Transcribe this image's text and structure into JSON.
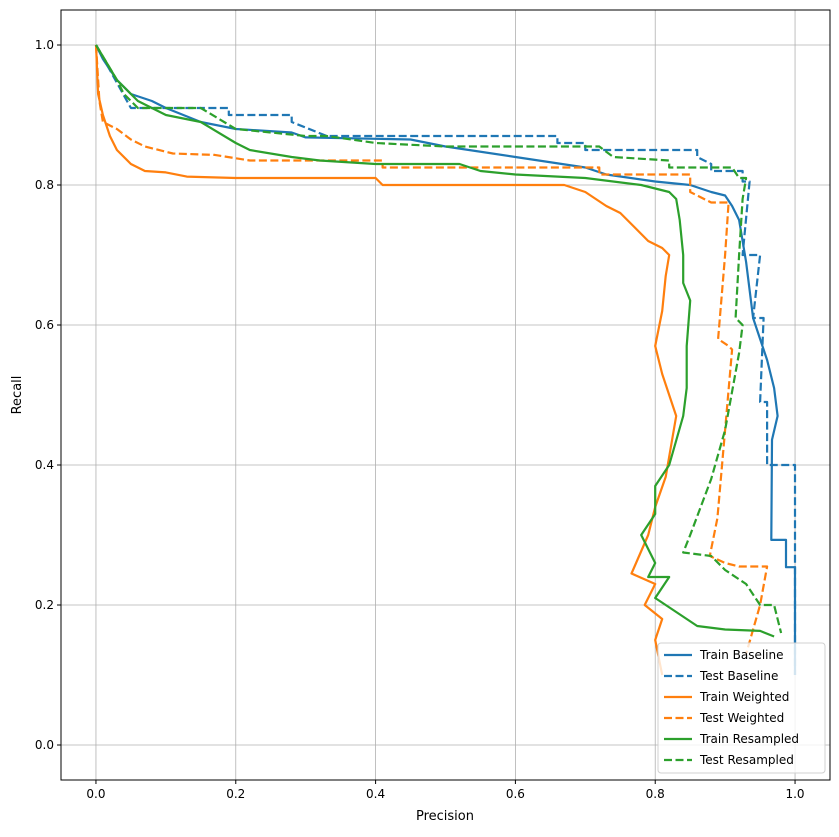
{
  "chart_data": {
    "type": "line",
    "title": "",
    "xlabel": "Precision",
    "ylabel": "Recall",
    "xlim": [
      -0.05,
      1.05
    ],
    "ylim": [
      -0.05,
      1.05
    ],
    "xticks": [
      "0.0",
      "0.2",
      "0.4",
      "0.6",
      "0.8",
      "1.0"
    ],
    "yticks": [
      "0.0",
      "0.2",
      "0.4",
      "0.6",
      "0.8",
      "1.0"
    ],
    "grid": true,
    "legend_position": "lower-right",
    "series": [
      {
        "name": "Train Baseline",
        "color": "#1f77b4",
        "dash": false,
        "points": [
          [
            0,
            1
          ],
          [
            0.01,
            0.98
          ],
          [
            0.03,
            0.95
          ],
          [
            0.05,
            0.93
          ],
          [
            0.08,
            0.92
          ],
          [
            0.1,
            0.91
          ],
          [
            0.15,
            0.89
          ],
          [
            0.2,
            0.88
          ],
          [
            0.28,
            0.875
          ],
          [
            0.3,
            0.868
          ],
          [
            0.45,
            0.865
          ],
          [
            0.5,
            0.855
          ],
          [
            0.6,
            0.84
          ],
          [
            0.7,
            0.825
          ],
          [
            0.73,
            0.815
          ],
          [
            0.8,
            0.805
          ],
          [
            0.85,
            0.8
          ],
          [
            0.88,
            0.79
          ],
          [
            0.9,
            0.785
          ],
          [
            0.91,
            0.77
          ],
          [
            0.92,
            0.75
          ],
          [
            0.925,
            0.72
          ],
          [
            0.93,
            0.69
          ],
          [
            0.935,
            0.65
          ],
          [
            0.94,
            0.61
          ],
          [
            0.95,
            0.58
          ],
          [
            0.96,
            0.55
          ],
          [
            0.97,
            0.51
          ],
          [
            0.975,
            0.47
          ],
          [
            0.967,
            0.436
          ],
          [
            0.966,
            0.293
          ],
          [
            0.987,
            0.293
          ],
          [
            0.987,
            0.254
          ],
          [
            1.0,
            0.254
          ],
          [
            1.0,
            0.1
          ]
        ]
      },
      {
        "name": "Test Baseline",
        "color": "#1f77b4",
        "dash": true,
        "points": [
          [
            0,
            1
          ],
          [
            0.05,
            0.91
          ],
          [
            0.19,
            0.91
          ],
          [
            0.19,
            0.9
          ],
          [
            0.28,
            0.9
          ],
          [
            0.28,
            0.89
          ],
          [
            0.33,
            0.87
          ],
          [
            0.66,
            0.87
          ],
          [
            0.66,
            0.86
          ],
          [
            0.7,
            0.86
          ],
          [
            0.7,
            0.85
          ],
          [
            0.86,
            0.85
          ],
          [
            0.86,
            0.84
          ],
          [
            0.88,
            0.83
          ],
          [
            0.88,
            0.82
          ],
          [
            0.925,
            0.82
          ],
          [
            0.925,
            0.805
          ],
          [
            0.935,
            0.805
          ],
          [
            0.925,
            0.7
          ],
          [
            0.95,
            0.7
          ],
          [
            0.94,
            0.61
          ],
          [
            0.955,
            0.61
          ],
          [
            0.95,
            0.49
          ],
          [
            0.96,
            0.49
          ],
          [
            0.96,
            0.4
          ],
          [
            1.0,
            0.4
          ],
          [
            1.0,
            0.1
          ]
        ]
      },
      {
        "name": "Train Weighted",
        "color": "#ff7f0e",
        "dash": false,
        "points": [
          [
            0,
            1
          ],
          [
            0.003,
            0.93
          ],
          [
            0.01,
            0.9
          ],
          [
            0.02,
            0.87
          ],
          [
            0.03,
            0.85
          ],
          [
            0.05,
            0.83
          ],
          [
            0.07,
            0.82
          ],
          [
            0.1,
            0.818
          ],
          [
            0.13,
            0.812
          ],
          [
            0.2,
            0.81
          ],
          [
            0.4,
            0.81
          ],
          [
            0.41,
            0.8
          ],
          [
            0.67,
            0.8
          ],
          [
            0.7,
            0.79
          ],
          [
            0.73,
            0.77
          ],
          [
            0.75,
            0.76
          ],
          [
            0.77,
            0.74
          ],
          [
            0.79,
            0.72
          ],
          [
            0.81,
            0.71
          ],
          [
            0.82,
            0.7
          ],
          [
            0.815,
            0.67
          ],
          [
            0.81,
            0.62
          ],
          [
            0.8,
            0.57
          ],
          [
            0.81,
            0.53
          ],
          [
            0.83,
            0.47
          ],
          [
            0.815,
            0.383
          ],
          [
            0.8,
            0.34
          ],
          [
            0.79,
            0.3
          ],
          [
            0.766,
            0.245
          ],
          [
            0.8,
            0.23
          ],
          [
            0.785,
            0.2
          ],
          [
            0.81,
            0.18
          ],
          [
            0.8,
            0.15
          ],
          [
            0.81,
            0.1
          ]
        ]
      },
      {
        "name": "Test Weighted",
        "color": "#ff7f0e",
        "dash": true,
        "points": [
          [
            0,
            1
          ],
          [
            0.005,
            0.92
          ],
          [
            0.01,
            0.89
          ],
          [
            0.03,
            0.88
          ],
          [
            0.05,
            0.865
          ],
          [
            0.07,
            0.855
          ],
          [
            0.11,
            0.845
          ],
          [
            0.17,
            0.843
          ],
          [
            0.22,
            0.835
          ],
          [
            0.41,
            0.835
          ],
          [
            0.41,
            0.825
          ],
          [
            0.72,
            0.825
          ],
          [
            0.72,
            0.815
          ],
          [
            0.85,
            0.815
          ],
          [
            0.85,
            0.79
          ],
          [
            0.88,
            0.775
          ],
          [
            0.905,
            0.775
          ],
          [
            0.9,
            0.7
          ],
          [
            0.89,
            0.58
          ],
          [
            0.905,
            0.57
          ],
          [
            0.91,
            0.565
          ],
          [
            0.9,
            0.45
          ],
          [
            0.889,
            0.324
          ],
          [
            0.878,
            0.27
          ],
          [
            0.9,
            0.26
          ],
          [
            0.92,
            0.255
          ],
          [
            0.96,
            0.255
          ],
          [
            0.95,
            0.2
          ],
          [
            0.93,
            0.13
          ]
        ]
      },
      {
        "name": "Train Resampled",
        "color": "#2ca02c",
        "dash": false,
        "points": [
          [
            0,
            1
          ],
          [
            0.03,
            0.95
          ],
          [
            0.06,
            0.92
          ],
          [
            0.1,
            0.9
          ],
          [
            0.15,
            0.89
          ],
          [
            0.2,
            0.86
          ],
          [
            0.22,
            0.85
          ],
          [
            0.28,
            0.84
          ],
          [
            0.32,
            0.835
          ],
          [
            0.4,
            0.83
          ],
          [
            0.52,
            0.83
          ],
          [
            0.55,
            0.82
          ],
          [
            0.6,
            0.815
          ],
          [
            0.7,
            0.81
          ],
          [
            0.78,
            0.8
          ],
          [
            0.82,
            0.79
          ],
          [
            0.83,
            0.78
          ],
          [
            0.835,
            0.75
          ],
          [
            0.84,
            0.7
          ],
          [
            0.84,
            0.66
          ],
          [
            0.85,
            0.635
          ],
          [
            0.845,
            0.57
          ],
          [
            0.845,
            0.51
          ],
          [
            0.84,
            0.47
          ],
          [
            0.82,
            0.4
          ],
          [
            0.8,
            0.37
          ],
          [
            0.8,
            0.33
          ],
          [
            0.78,
            0.3
          ],
          [
            0.8,
            0.26
          ],
          [
            0.79,
            0.24
          ],
          [
            0.82,
            0.24
          ],
          [
            0.8,
            0.21
          ],
          [
            0.83,
            0.19
          ],
          [
            0.86,
            0.17
          ],
          [
            0.9,
            0.165
          ],
          [
            0.95,
            0.163
          ],
          [
            0.97,
            0.155
          ]
        ]
      },
      {
        "name": "Test Resampled",
        "color": "#2ca02c",
        "dash": true,
        "points": [
          [
            0,
            1
          ],
          [
            0.03,
            0.95
          ],
          [
            0.04,
            0.93
          ],
          [
            0.05,
            0.92
          ],
          [
            0.06,
            0.91
          ],
          [
            0.15,
            0.91
          ],
          [
            0.2,
            0.88
          ],
          [
            0.3,
            0.87
          ],
          [
            0.33,
            0.87
          ],
          [
            0.4,
            0.86
          ],
          [
            0.5,
            0.855
          ],
          [
            0.72,
            0.855
          ],
          [
            0.74,
            0.84
          ],
          [
            0.82,
            0.835
          ],
          [
            0.82,
            0.825
          ],
          [
            0.91,
            0.825
          ],
          [
            0.92,
            0.81
          ],
          [
            0.93,
            0.81
          ],
          [
            0.925,
            0.78
          ],
          [
            0.92,
            0.7
          ],
          [
            0.915,
            0.61
          ],
          [
            0.925,
            0.6
          ],
          [
            0.92,
            0.56
          ],
          [
            0.9,
            0.45
          ],
          [
            0.88,
            0.38
          ],
          [
            0.85,
            0.3
          ],
          [
            0.84,
            0.275
          ],
          [
            0.88,
            0.27
          ],
          [
            0.9,
            0.25
          ],
          [
            0.93,
            0.23
          ],
          [
            0.95,
            0.2
          ],
          [
            0.97,
            0.2
          ],
          [
            0.98,
            0.16
          ]
        ]
      }
    ]
  }
}
